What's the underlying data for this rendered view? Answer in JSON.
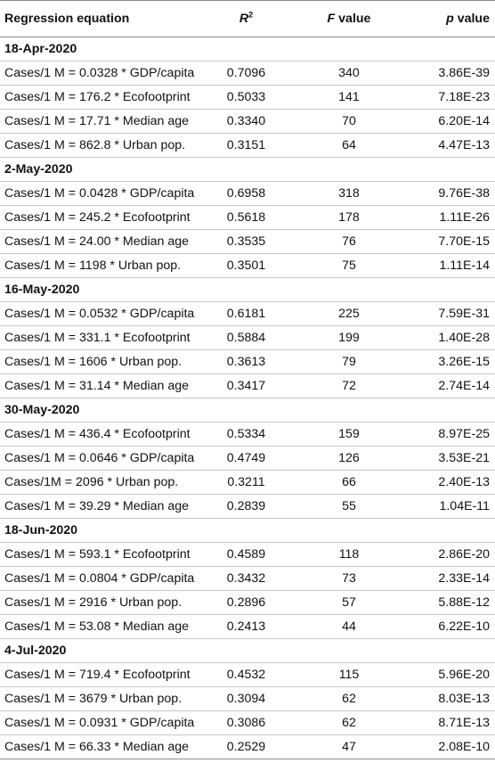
{
  "header": {
    "col1": "Regression equation",
    "col2_main": "R",
    "col2_sup": "2",
    "col3_italic": "F",
    "col3_rest": " value",
    "col4_italic": "p",
    "col4_rest": " value"
  },
  "sections": [
    {
      "date": "18-Apr-2020",
      "rows": [
        {
          "eq": "Cases/1 M = 0.0328 * GDP/capita",
          "r2": "0.7096",
          "f": "340",
          "p": "3.86E-39"
        },
        {
          "eq": "Cases/1 M = 176.2 * Ecofootprint",
          "r2": "0.5033",
          "f": "141",
          "p": "7.18E-23"
        },
        {
          "eq": "Cases/1 M = 17.71 * Median age",
          "r2": "0.3340",
          "f": "70",
          "p": "6.20E-14"
        },
        {
          "eq": "Cases/1 M = 862.8 * Urban pop.",
          "r2": "0.3151",
          "f": "64",
          "p": "4.47E-13"
        }
      ]
    },
    {
      "date": "2-May-2020",
      "rows": [
        {
          "eq": "Cases/1 M = 0.0428 * GDP/capita",
          "r2": "0.6958",
          "f": "318",
          "p": "9.76E-38"
        },
        {
          "eq": "Cases/1 M = 245.2 * Ecofootprint",
          "r2": "0.5618",
          "f": "178",
          "p": "1.11E-26"
        },
        {
          "eq": "Cases/1 M = 24.00 * Median age",
          "r2": "0.3535",
          "f": "76",
          "p": "7.70E-15"
        },
        {
          "eq": "Cases/1 M = 1198 * Urban pop.",
          "r2": "0.3501",
          "f": "75",
          "p": "1.11E-14"
        }
      ]
    },
    {
      "date": "16-May-2020",
      "rows": [
        {
          "eq": "Cases/1 M = 0.0532 * GDP/capita",
          "r2": "0.6181",
          "f": "225",
          "p": "7.59E-31"
        },
        {
          "eq": "Cases/1 M = 331.1 * Ecofootprint",
          "r2": "0.5884",
          "f": "199",
          "p": "1.40E-28"
        },
        {
          "eq": "Cases/1 M = 1606 * Urban pop.",
          "r2": "0.3613",
          "f": "79",
          "p": "3.26E-15"
        },
        {
          "eq": "Cases/1 M = 31.14 * Median age",
          "r2": "0.3417",
          "f": "72",
          "p": "2.74E-14"
        }
      ]
    },
    {
      "date": "30-May-2020",
      "rows": [
        {
          "eq": "Cases/1 M = 436.4 * Ecofootprint",
          "r2": "0.5334",
          "f": "159",
          "p": "8.97E-25"
        },
        {
          "eq": "Cases/1 M = 0.0646 * GDP/capita",
          "r2": "0.4749",
          "f": "126",
          "p": "3.53E-21"
        },
        {
          "eq": "Cases/1M = 2096 * Urban pop.",
          "r2": "0.3211",
          "f": "66",
          "p": "2.40E-13"
        },
        {
          "eq": "Cases/1 M = 39.29 * Median age",
          "r2": "0.2839",
          "f": "55",
          "p": "1.04E-11"
        }
      ]
    },
    {
      "date": "18-Jun-2020",
      "rows": [
        {
          "eq": "Cases/1 M = 593.1 * Ecofootprint",
          "r2": "0.4589",
          "f": "118",
          "p": "2.86E-20"
        },
        {
          "eq": "Cases/1 M = 0.0804 * GDP/capita",
          "r2": "0.3432",
          "f": "73",
          "p": "2.33E-14"
        },
        {
          "eq": "Cases/1 M = 2916 * Urban pop.",
          "r2": "0.2896",
          "f": "57",
          "p": "5.88E-12"
        },
        {
          "eq": "Cases/1 M = 53.08 * Median age",
          "r2": "0.2413",
          "f": "44",
          "p": "6.22E-10"
        }
      ]
    },
    {
      "date": "4-Jul-2020",
      "rows": [
        {
          "eq": "Cases/1 M = 719.4 * Ecofootprint",
          "r2": "0.4532",
          "f": "115",
          "p": "5.96E-20"
        },
        {
          "eq": "Cases/1 M = 3679 * Urban pop.",
          "r2": "0.3094",
          "f": "62",
          "p": "8.03E-13"
        },
        {
          "eq": "Cases/1 M = 0.0931 * GDP/capita",
          "r2": "0.3086",
          "f": "62",
          "p": "8.71E-13"
        },
        {
          "eq": "Cases/1 M = 66.33 * Median age",
          "r2": "0.2529",
          "f": "47",
          "p": "2.08E-10"
        }
      ]
    }
  ]
}
